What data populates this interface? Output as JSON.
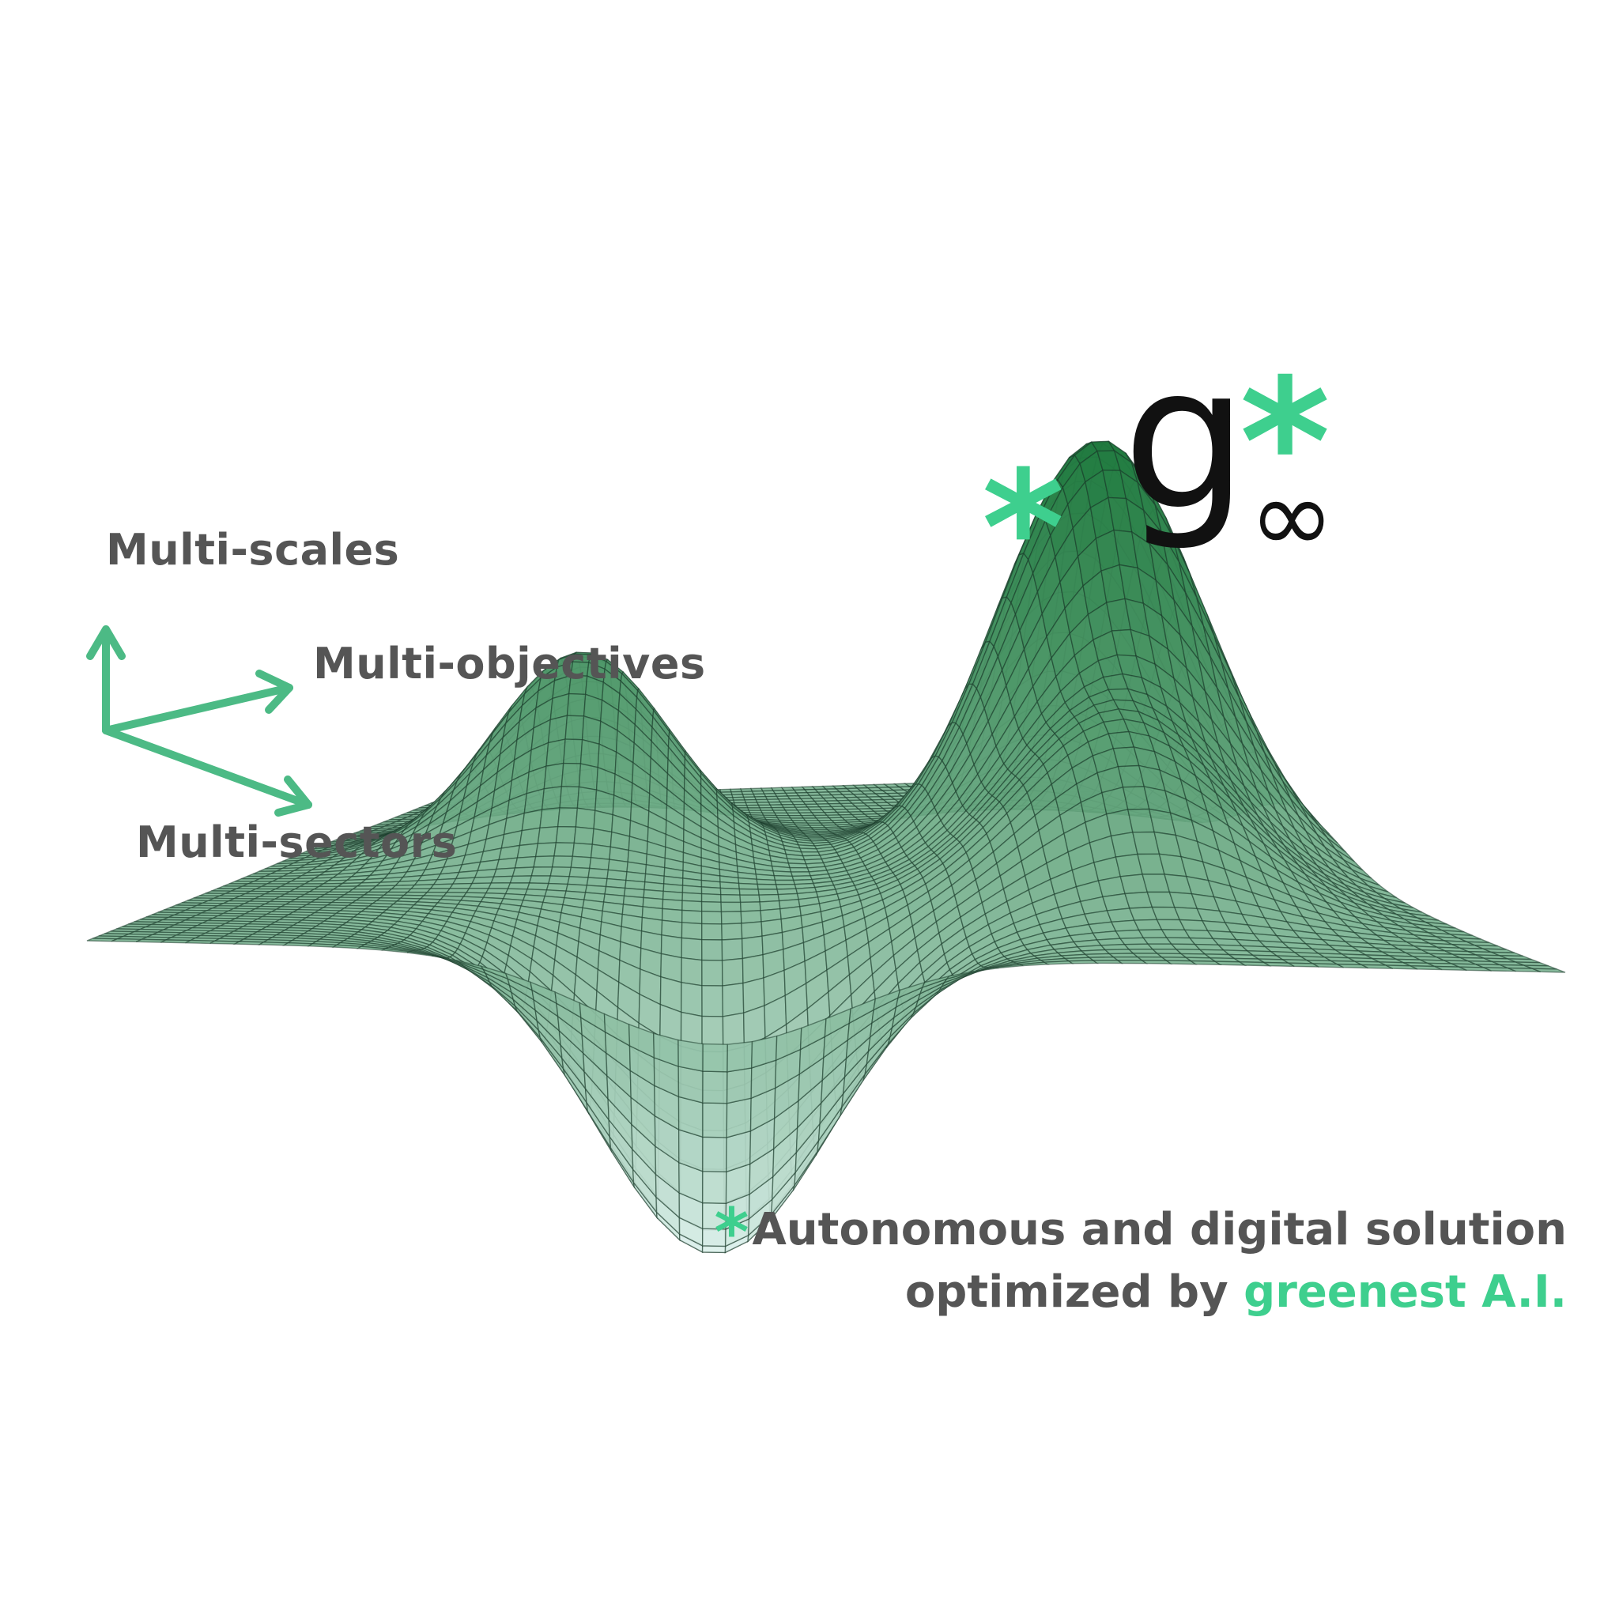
{
  "axes": {
    "up_label": "Multi-scales",
    "right_label": "Multi-objectives",
    "down_label": "Multi-sectors"
  },
  "logo": {
    "letter": "g",
    "star": "*",
    "subscript": "∞"
  },
  "peak_marker": "*",
  "caption": {
    "star": "*",
    "line1": "Autonomous and digital solution",
    "line2_prefix": "optimized by ",
    "line2_highlight": "greenest A.I."
  },
  "colors": {
    "accent": "#3ecf8e",
    "arrow": "#4cba85",
    "text": "#555555",
    "surface_dark": "#1f7a3e",
    "surface_light": "#e6f6f4",
    "mesh_line": "#1a3a2a"
  },
  "icons": {
    "axes": "three-arrow-axes-icon",
    "surface": "3d-mesh-surface-icon"
  }
}
